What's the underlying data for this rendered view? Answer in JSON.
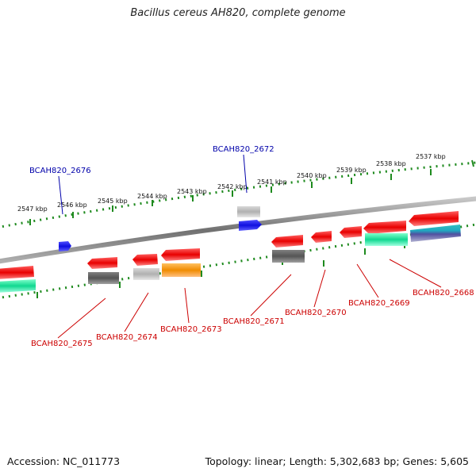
{
  "title": "Bacillus cereus AH820, complete genome",
  "footer": {
    "accession": "Accession: NC_011773",
    "summary": "Topology: linear; Length: 5,302,683 bp; Genes: 5,605"
  },
  "colors": {
    "backbone": "#8a8a8a",
    "ruler": "#1e8a1e",
    "forward_label": "#0000aa",
    "reverse_label": "#cc0000",
    "red_feature": "#e80000",
    "blue_feature": "#1010e0",
    "teal_feature": "#10d890",
    "orange_feature": "#f08c00",
    "gray_feature": "#b8b8b8",
    "dark_feature": "#5a5a5a",
    "purple_feature": "#7070a8",
    "cyan_feature": "#20a8c0"
  },
  "upper_ruler": {
    "ticks": [
      "2547 kbp",
      "2546 kbp",
      "2545 kbp",
      "2544 kbp",
      "2543 kbp",
      "2542 kbp",
      "2541 kbp",
      "2540 kbp",
      "2539 kbp",
      "2538 kbp",
      "2537 kbp"
    ]
  },
  "labels": {
    "forward": [
      "BCAH820_2676",
      "BCAH820_2672"
    ],
    "reverse": [
      "BCAH820_2675",
      "BCAH820_2674",
      "BCAH820_2673",
      "BCAH820_2671",
      "BCAH820_2670",
      "BCAH820_2669",
      "BCAH820_2668"
    ]
  }
}
